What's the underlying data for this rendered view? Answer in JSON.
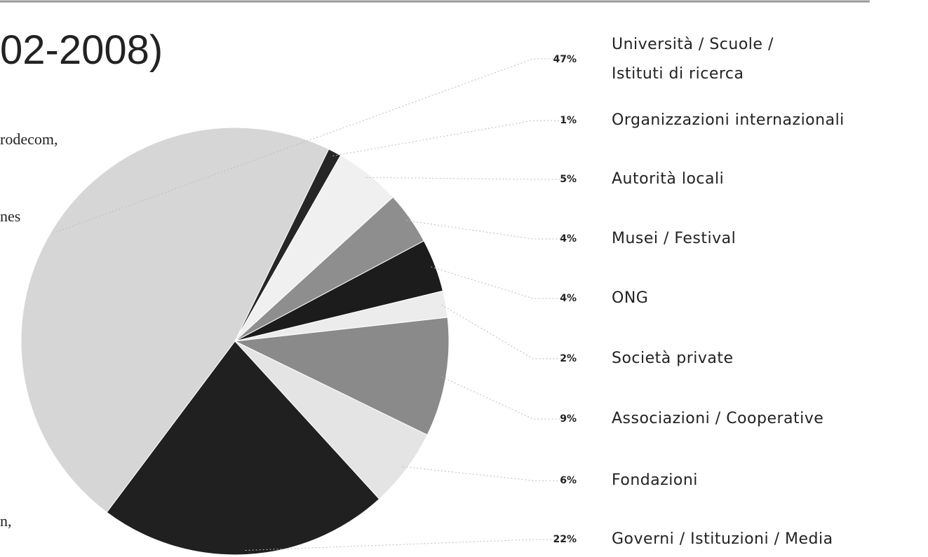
{
  "page_text": [
    "rodecom,",
    "nes",
    "n,"
  ],
  "chart_data": {
    "type": "pie",
    "title": "02-2008)",
    "categories": [
      "Università / Scuole / Istituti di ricerca",
      "Organizzazioni internazionali",
      "Autorità locali",
      "Musei / Festival",
      "ONG",
      "Società private",
      "Associazioni / Cooperative",
      "Fondazioni",
      "Governi / Istituzioni / Media"
    ],
    "values": [
      47,
      1,
      5,
      4,
      4,
      2,
      9,
      6,
      22
    ],
    "value_labels": [
      "47%",
      "1%",
      "5%",
      "4%",
      "4%",
      "2%",
      "9%",
      "6%",
      "22%"
    ],
    "colors": [
      "#d6d6d6",
      "#262626",
      "#f0f0f0",
      "#8e8e8e",
      "#1c1c1c",
      "#ececec",
      "#8a8a8a",
      "#e4e4e4",
      "#202020"
    ]
  }
}
